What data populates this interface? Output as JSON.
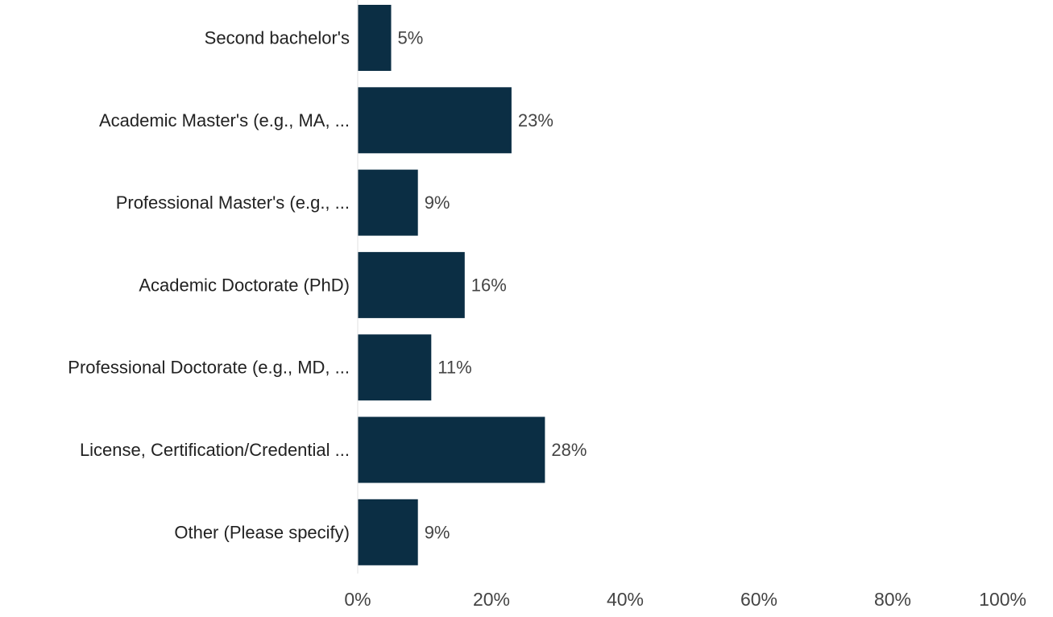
{
  "chart_data": {
    "type": "bar",
    "orientation": "horizontal",
    "categories": [
      "Second bachelor's",
      "Academic Master's (e.g., MA, ...",
      "Professional Master's (e.g., ...",
      "Academic Doctorate (PhD)",
      "Professional Doctorate (e.g., MD, ...",
      "License, Certification/Credential ...",
      "Other (Please specify)"
    ],
    "values": [
      5,
      23,
      9,
      16,
      11,
      28,
      9
    ],
    "value_labels": [
      "5%",
      "23%",
      "9%",
      "16%",
      "11%",
      "28%",
      "9%"
    ],
    "xlim": [
      0,
      100
    ],
    "x_ticks": [
      0,
      20,
      40,
      60,
      80,
      100
    ],
    "x_tick_labels": [
      "0%",
      "20%",
      "40%",
      "60%",
      "80%",
      "100%"
    ],
    "grid": false,
    "legend": "none",
    "colors": {
      "bar": "#0b2e44",
      "label_text": "#222222",
      "value_text": "#444444",
      "axis_line": "#e0e0e0"
    }
  }
}
